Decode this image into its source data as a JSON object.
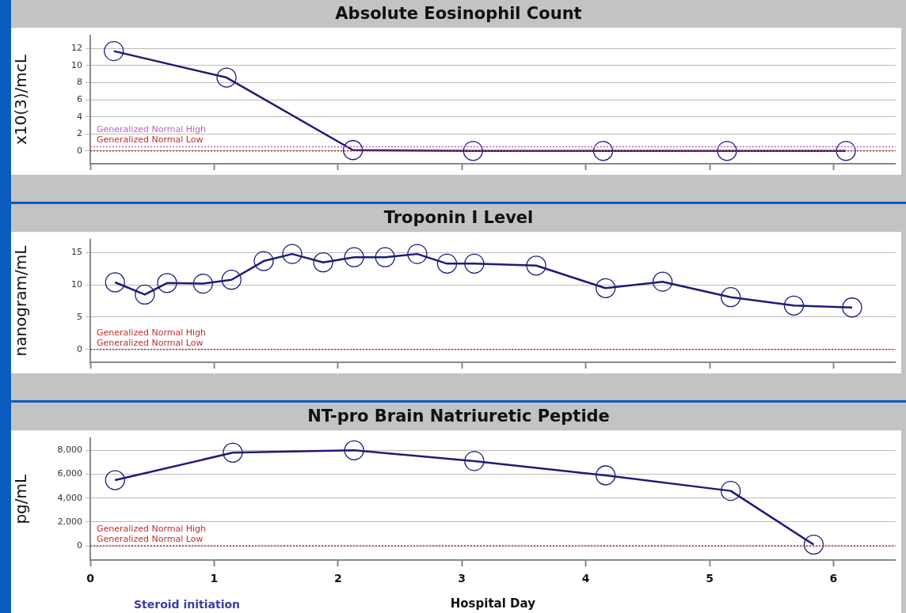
{
  "chart_data": [
    {
      "type": "line",
      "title": "Absolute Eosinophil Count",
      "ylabel": "x10(3)/mcL",
      "color": "#1c1c78",
      "marker": "circle",
      "grid": "y",
      "tick_labels": "y",
      "x": [
        0.19,
        1.1,
        2.12,
        3.09,
        4.14,
        5.14,
        6.1
      ],
      "values": [
        11.7,
        8.6,
        0.1,
        0,
        0,
        0,
        0
      ],
      "xlim": [
        0,
        6.5
      ],
      "xticks": [
        {
          "value": 0,
          "label": null
        },
        {
          "value": 1,
          "label": null
        },
        {
          "value": 2,
          "label": null
        },
        {
          "value": 3,
          "label": null
        },
        {
          "value": 4,
          "label": null
        },
        {
          "value": 5,
          "label": null
        },
        {
          "value": 6,
          "label": null
        }
      ],
      "ylim": [
        -1.5,
        13.5
      ],
      "yticks": [
        0,
        2,
        4,
        6,
        8,
        10,
        12
      ],
      "ref_lines": [
        {
          "axis": "y",
          "value": 0,
          "label": "Generalized Normal Low",
          "color": "#c0302a",
          "line_style": "dotted"
        },
        {
          "axis": "y",
          "value": 0.5,
          "label": "Generalized Normal High",
          "color": "#c060d0",
          "line_style": "dotted"
        }
      ]
    },
    {
      "type": "line",
      "title": "Troponin I Level",
      "ylabel": "nanogram/mL",
      "color": "#1c1c78",
      "marker": "circle",
      "grid": "y",
      "tick_labels": "y",
      "x": [
        0.2,
        0.44,
        0.62,
        0.91,
        1.14,
        1.4,
        1.63,
        1.88,
        2.13,
        2.38,
        2.64,
        2.88,
        3.1,
        3.6,
        4.16,
        4.62,
        5.17,
        5.68,
        6.15
      ],
      "values": [
        10.4,
        8.5,
        10.3,
        10.2,
        10.8,
        13.7,
        14.8,
        13.5,
        14.3,
        14.3,
        14.8,
        13.3,
        13.3,
        13.0,
        9.5,
        10.5,
        8.1,
        6.8,
        6.5
      ],
      "xlim": [
        0,
        6.5
      ],
      "xticks": [
        {
          "value": 0,
          "label": null
        },
        {
          "value": 1,
          "label": null
        },
        {
          "value": 2,
          "label": null
        },
        {
          "value": 3,
          "label": null
        },
        {
          "value": 4,
          "label": null
        },
        {
          "value": 5,
          "label": null
        },
        {
          "value": 6,
          "label": null
        }
      ],
      "ylim": [
        -2,
        17
      ],
      "yticks": [
        0,
        5,
        10,
        15
      ],
      "ref_lines": [
        {
          "axis": "y",
          "value": 0,
          "label": "Generalized Normal Low",
          "color": "#c0302a",
          "line_style": "dotted"
        }
      ],
      "annotations": [
        {
          "text": "Generalized Normal High",
          "y": 0
        }
      ]
    },
    {
      "type": "line",
      "title": "NT-pro Brain Natriuretic Peptide",
      "ylabel": "pg/mL",
      "xlabel": "Hospital Day",
      "color": "#1c1c78",
      "marker": "circle",
      "grid": "y",
      "x": [
        0.2,
        1.15,
        2.13,
        3.1,
        4.16,
        5.17,
        5.84
      ],
      "values": [
        5500,
        7800,
        8000,
        7100,
        5900,
        4600,
        100
      ],
      "xlim": [
        0,
        6.5
      ],
      "xticks": [
        0,
        1,
        2,
        3,
        4,
        5,
        6
      ],
      "ylim": [
        -1200,
        9000
      ],
      "yticks": [
        0,
        {
          "value": 2000,
          "label": "2,000"
        },
        {
          "value": 4000,
          "label": "4,000"
        },
        {
          "value": 6000,
          "label": "6,000"
        },
        {
          "value": 8000,
          "label": "8,000"
        }
      ],
      "ref_lines": [
        {
          "axis": "y",
          "value": 0,
          "label": "Generalized Normal Low",
          "color": "#c0302a",
          "line_style": "dotted"
        }
      ],
      "annotations": [
        {
          "text": "Generalized Normal High",
          "y": 0
        },
        "Steroid initiation"
      ]
    }
  ]
}
